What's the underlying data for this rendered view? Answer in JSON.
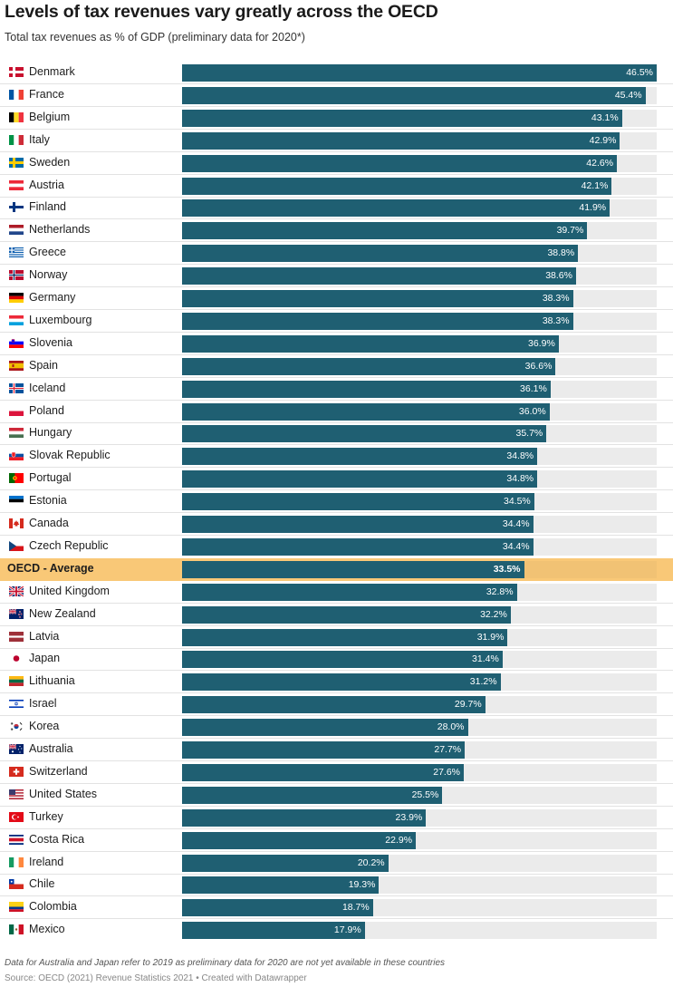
{
  "header": {
    "title": "Levels of tax revenues vary greatly across the OECD",
    "subtitle": "Total tax revenues as % of GDP (preliminary data for 2020*)"
  },
  "footer": {
    "note": "Data for Australia and Japan refer to 2019 as preliminary data for 2020 are not yet available in these countries",
    "source": "Source: OECD (2021) Revenue Statistics 2021 • Created with Datawrapper"
  },
  "colors": {
    "bar": "#1f5f72",
    "track": "#ebebeb",
    "highlight": "#f9c877",
    "highlight_track": "#f1c274"
  },
  "chart_data": {
    "type": "bar",
    "orientation": "horizontal",
    "title": "Levels of tax revenues vary greatly across the OECD",
    "subtitle": "Total tax revenues as % of GDP (preliminary data for 2020*)",
    "xlabel": "",
    "ylabel": "",
    "xlim": [
      0,
      50
    ],
    "unit": "%",
    "highlight": "OECD - Average",
    "categories": [
      "Denmark",
      "France",
      "Belgium",
      "Italy",
      "Sweden",
      "Austria",
      "Finland",
      "Netherlands",
      "Greece",
      "Norway",
      "Germany",
      "Luxembourg",
      "Slovenia",
      "Spain",
      "Iceland",
      "Poland",
      "Hungary",
      "Slovak Republic",
      "Portugal",
      "Estonia",
      "Canada",
      "Czech Republic",
      "OECD - Average",
      "United Kingdom",
      "New Zealand",
      "Latvia",
      "Japan",
      "Lithuania",
      "Israel",
      "Korea",
      "Australia",
      "Switzerland",
      "United States",
      "Turkey",
      "Costa Rica",
      "Ireland",
      "Chile",
      "Colombia",
      "Mexico"
    ],
    "values": [
      46.5,
      45.4,
      43.1,
      42.9,
      42.6,
      42.1,
      41.9,
      39.7,
      38.8,
      38.6,
      38.3,
      38.3,
      36.9,
      36.6,
      36.1,
      36.0,
      35.7,
      34.8,
      34.8,
      34.5,
      34.4,
      34.4,
      33.5,
      32.8,
      32.2,
      31.9,
      31.4,
      31.2,
      29.7,
      28.0,
      27.7,
      27.6,
      25.5,
      23.9,
      22.9,
      20.2,
      19.3,
      18.7,
      17.9
    ],
    "value_labels": [
      "46.5%",
      "45.4%",
      "43.1%",
      "42.9%",
      "42.6%",
      "42.1%",
      "41.9%",
      "39.7%",
      "38.8%",
      "38.6%",
      "38.3%",
      "38.3%",
      "36.9%",
      "36.6%",
      "36.1%",
      "36.0%",
      "35.7%",
      "34.8%",
      "34.8%",
      "34.5%",
      "34.4%",
      "34.4%",
      "33.5%",
      "32.8%",
      "32.2%",
      "31.9%",
      "31.4%",
      "31.2%",
      "29.7%",
      "28.0%",
      "27.7%",
      "27.6%",
      "25.5%",
      "23.9%",
      "22.9%",
      "20.2%",
      "19.3%",
      "18.7%",
      "17.9%"
    ],
    "flag_icons": [
      "denmark-flag-icon",
      "france-flag-icon",
      "belgium-flag-icon",
      "italy-flag-icon",
      "sweden-flag-icon",
      "austria-flag-icon",
      "finland-flag-icon",
      "netherlands-flag-icon",
      "greece-flag-icon",
      "norway-flag-icon",
      "germany-flag-icon",
      "luxembourg-flag-icon",
      "slovenia-flag-icon",
      "spain-flag-icon",
      "iceland-flag-icon",
      "poland-flag-icon",
      "hungary-flag-icon",
      "slovak-republic-flag-icon",
      "portugal-flag-icon",
      "estonia-flag-icon",
      "canada-flag-icon",
      "czech-republic-flag-icon",
      "",
      "united-kingdom-flag-icon",
      "new-zealand-flag-icon",
      "latvia-flag-icon",
      "japan-flag-icon",
      "lithuania-flag-icon",
      "israel-flag-icon",
      "korea-flag-icon",
      "australia-flag-icon",
      "switzerland-flag-icon",
      "united-states-flag-icon",
      "turkey-flag-icon",
      "costa-rica-flag-icon",
      "ireland-flag-icon",
      "chile-flag-icon",
      "colombia-flag-icon",
      "mexico-flag-icon"
    ]
  }
}
